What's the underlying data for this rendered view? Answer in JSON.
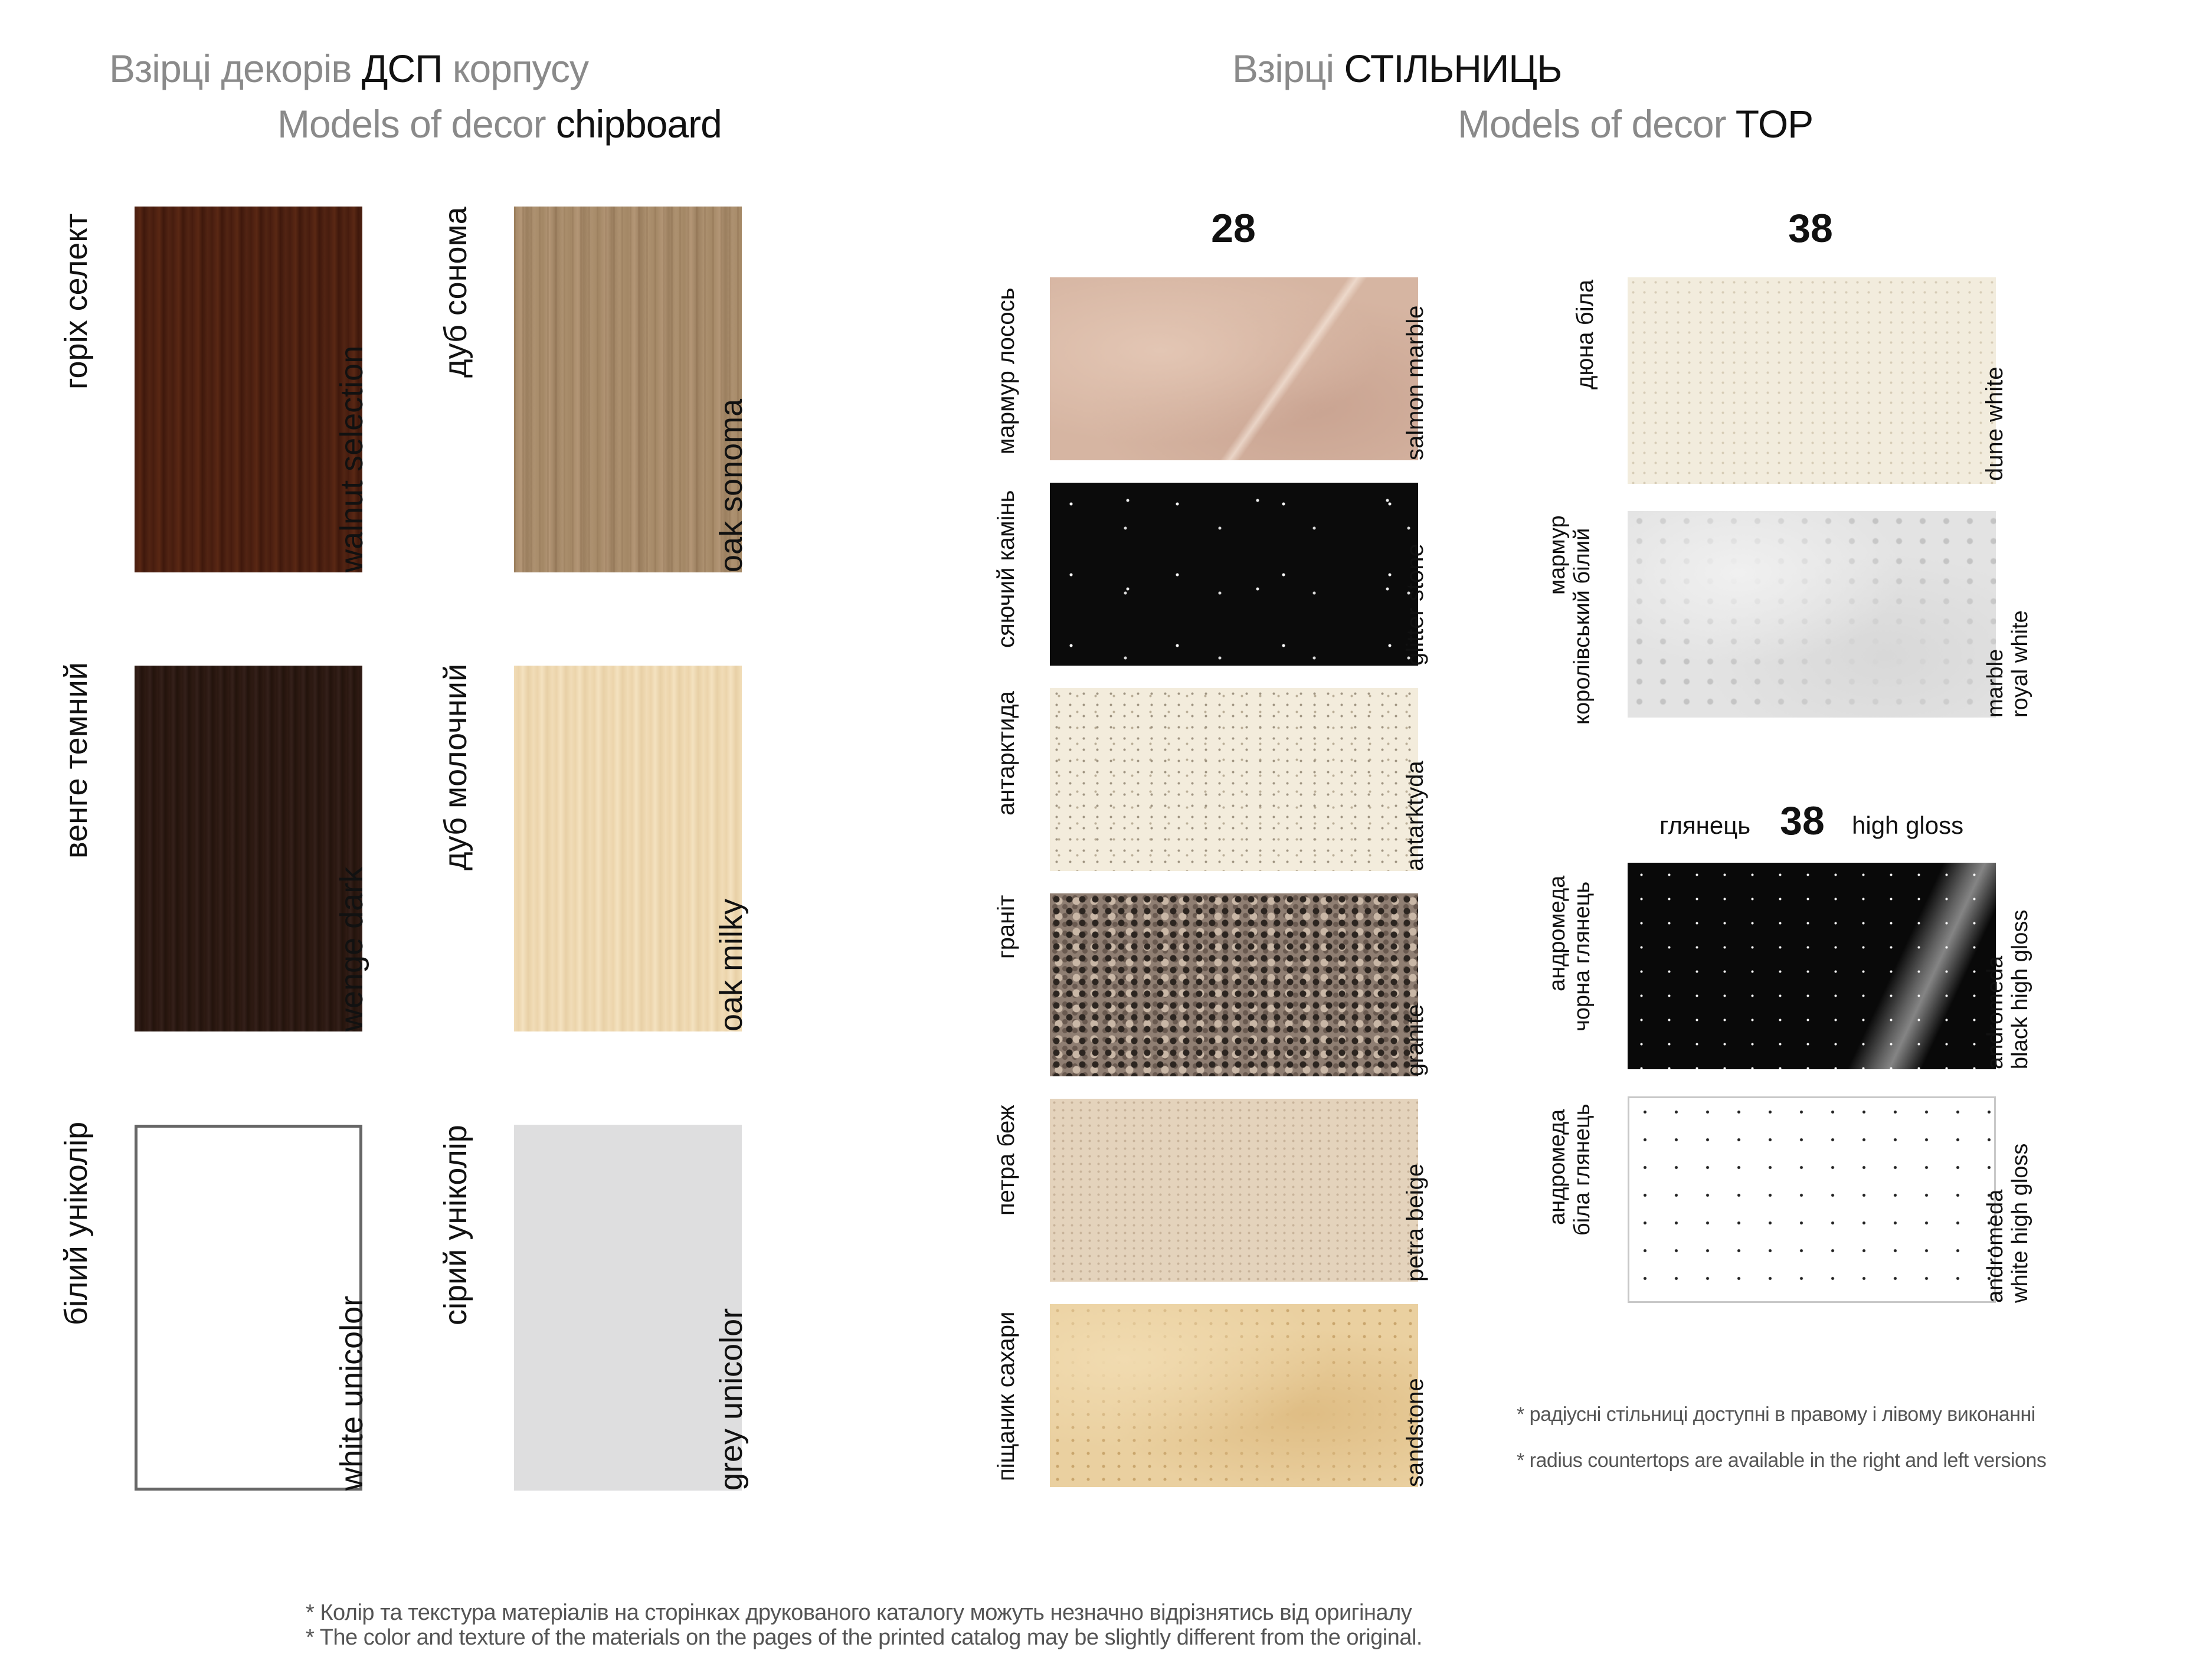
{
  "left_header": {
    "line1_prefix": "Взірці декорів ",
    "line1_bold": "ДСП",
    "line1_suffix": " корпусу",
    "line2_prefix": "Models of decor ",
    "line2_bold": "chipboard"
  },
  "right_header": {
    "line1_prefix": "Взірці ",
    "line1_bold": "СТІЛЬНИЦЬ",
    "line2_prefix": "Models of decor ",
    "line2_bold": "TOP"
  },
  "chipboard": [
    {
      "ua": "горіх селект",
      "en": "walnut selection"
    },
    {
      "ua": "дуб сонома",
      "en": "oak sonoma"
    },
    {
      "ua": "венге темний",
      "en": "wenge dark"
    },
    {
      "ua": "дуб молочний",
      "en": "oak milky"
    },
    {
      "ua": "білий уніколір",
      "en": "white unicolor"
    },
    {
      "ua": "сірий уніколір",
      "en": "grey unicolor"
    }
  ],
  "tops28": {
    "number": "28",
    "items": [
      {
        "ua": "мармур лосось",
        "en": "salmon marble"
      },
      {
        "ua": "сяючий камінь",
        "en": "glitter stone"
      },
      {
        "ua": "антарктида",
        "en": "antarktyda"
      },
      {
        "ua": "граніт",
        "en": "granite"
      },
      {
        "ua": "петра беж",
        "en": "petra beige"
      },
      {
        "ua": "піщаник сахари",
        "en": "sandstone"
      }
    ]
  },
  "tops38": {
    "number": "38",
    "items": [
      {
        "ua": [
          "дюна біла"
        ],
        "en": [
          "dune white"
        ]
      },
      {
        "ua": [
          "мармур",
          "королівський білий"
        ],
        "en": [
          "marble",
          "royal white"
        ]
      }
    ]
  },
  "gloss38": {
    "ua_label": "глянець",
    "number": "38",
    "en_label": "high gloss",
    "items": [
      {
        "ua": [
          "андромеда",
          "чорна глянець"
        ],
        "en": [
          "andromeda",
          "black high gloss"
        ]
      },
      {
        "ua": [
          "андромеда",
          "біла глянець"
        ],
        "en": [
          "andromeda",
          "white high gloss"
        ]
      }
    ]
  },
  "notes": {
    "radius_ua": "*   радіусні стільниці доступні в правому і лівому виконанні",
    "radius_en": "*   radius countertops are available in the right and left versions",
    "footer_ua": "* Колір та текстура матеріалів на сторінках друкованого каталогу можуть незначно відрізнятись від оригіналу",
    "footer_en": "* The color and texture of the materials on the pages of the printed catalog may be slightly different from the original."
  }
}
